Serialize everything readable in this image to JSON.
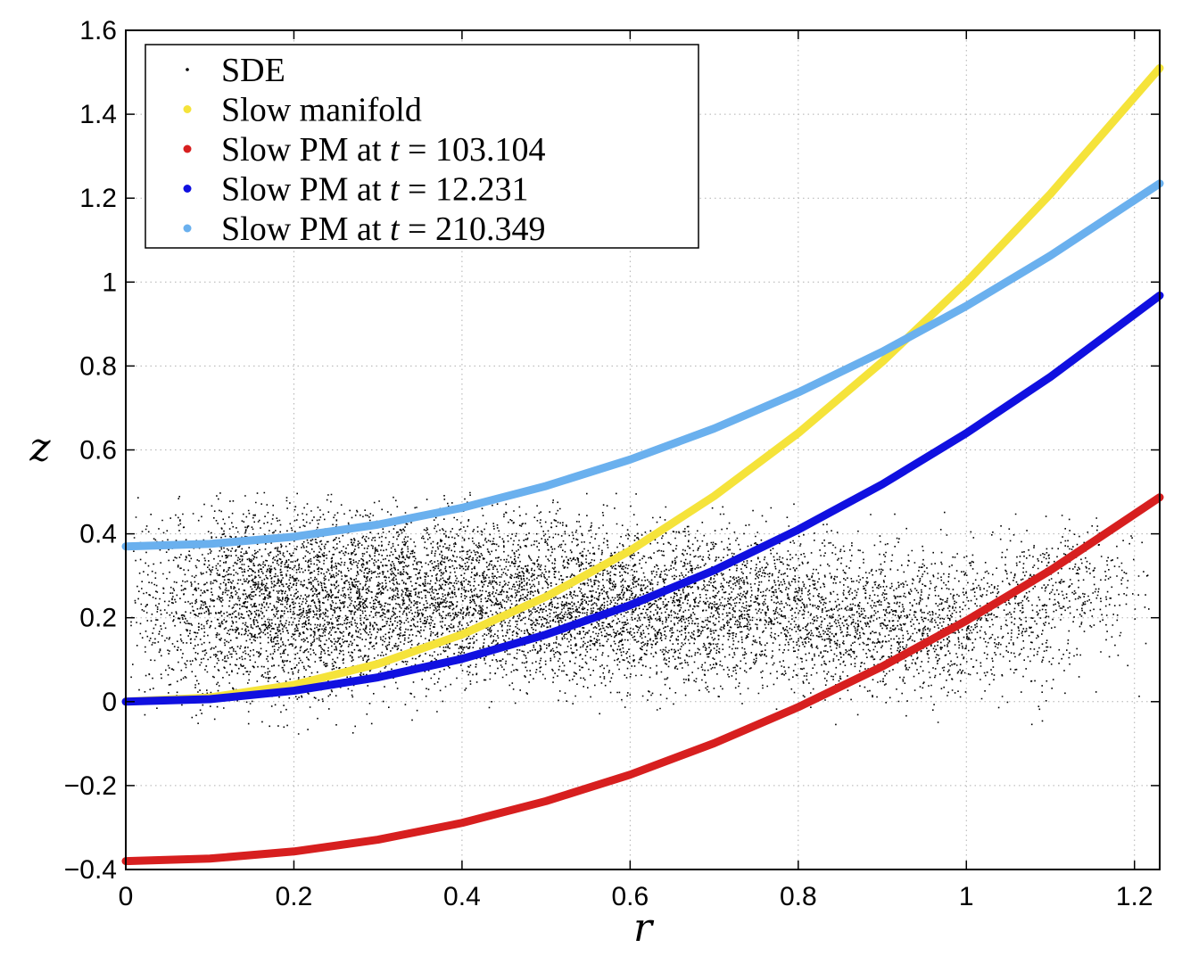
{
  "chart_data": {
    "type": "scatter",
    "title": "",
    "xlabel": "r",
    "ylabel": "z",
    "xlim": [
      0,
      1.23
    ],
    "ylim": [
      -0.4,
      1.6
    ],
    "grid": true,
    "legend_position": "top-left",
    "x_ticks": [
      0,
      0.2,
      0.4,
      0.6,
      0.8,
      1,
      1.2
    ],
    "x_tick_labels": [
      "0",
      "0.2",
      "0.4",
      "0.6",
      "0.8",
      "1",
      "1.2"
    ],
    "y_ticks": [
      -0.4,
      -0.2,
      0,
      0.2,
      0.4,
      0.6,
      0.8,
      1,
      1.2,
      1.4,
      1.6
    ],
    "y_tick_labels": [
      "−0.4",
      "−0.2",
      "0",
      "0.2",
      "0.4",
      "0.6",
      "0.8",
      "1",
      "1.2",
      "1.4",
      "1.6"
    ],
    "series": [
      {
        "name": "SDE",
        "kind": "scatter-cloud",
        "color": "#000000",
        "description_points": {
          "r_range": [
            0.0,
            1.22
          ],
          "z_range": [
            -0.08,
            0.5
          ],
          "densest_region": {
            "r": [
              0.15,
              0.7
            ],
            "z": [
              0.1,
              0.4
            ]
          }
        }
      },
      {
        "name": "Slow manifold",
        "kind": "curve",
        "color": "#f5e33a",
        "x": [
          0,
          0.1,
          0.2,
          0.3,
          0.4,
          0.5,
          0.6,
          0.7,
          0.8,
          0.9,
          1.0,
          1.1,
          1.23
        ],
        "y": [
          0,
          0.01,
          0.04,
          0.09,
          0.16,
          0.25,
          0.36,
          0.49,
          0.64,
          0.81,
          1.0,
          1.21,
          1.51
        ]
      },
      {
        "name": "Slow PM at t = 103.104",
        "label_prefix": "Slow PM at ",
        "label_var": "t",
        "label_eq": " = 103.104",
        "kind": "curve",
        "color": "#d71f1f",
        "x": [
          0,
          0.1,
          0.2,
          0.3,
          0.4,
          0.5,
          0.6,
          0.7,
          0.8,
          0.9,
          1.0,
          1.1,
          1.23
        ],
        "y": [
          -0.38,
          -0.374,
          -0.357,
          -0.329,
          -0.289,
          -0.237,
          -0.174,
          -0.099,
          -0.013,
          0.084,
          0.193,
          0.313,
          0.487
        ]
      },
      {
        "name": "Slow PM at t = 12.231",
        "label_prefix": "Slow PM at ",
        "label_var": "t",
        "label_eq": " = 12.231",
        "kind": "curve",
        "color": "#1010e0",
        "x": [
          0,
          0.1,
          0.2,
          0.3,
          0.4,
          0.5,
          0.6,
          0.7,
          0.8,
          0.9,
          1.0,
          1.1,
          1.23
        ],
        "y": [
          0,
          0.006,
          0.026,
          0.058,
          0.102,
          0.16,
          0.23,
          0.313,
          0.41,
          0.518,
          0.64,
          0.774,
          0.968
        ]
      },
      {
        "name": "Slow PM at t = 210.349",
        "label_prefix": "Slow PM at ",
        "label_var": "t",
        "label_eq": " = 210.349",
        "kind": "curve",
        "color": "#6ab0ee",
        "x": [
          0,
          0.1,
          0.2,
          0.3,
          0.4,
          0.5,
          0.6,
          0.7,
          0.8,
          0.9,
          1.0,
          1.1,
          1.23
        ],
        "y": [
          0.37,
          0.376,
          0.393,
          0.422,
          0.462,
          0.514,
          0.577,
          0.651,
          0.737,
          0.834,
          0.943,
          1.063,
          1.235
        ]
      }
    ]
  }
}
